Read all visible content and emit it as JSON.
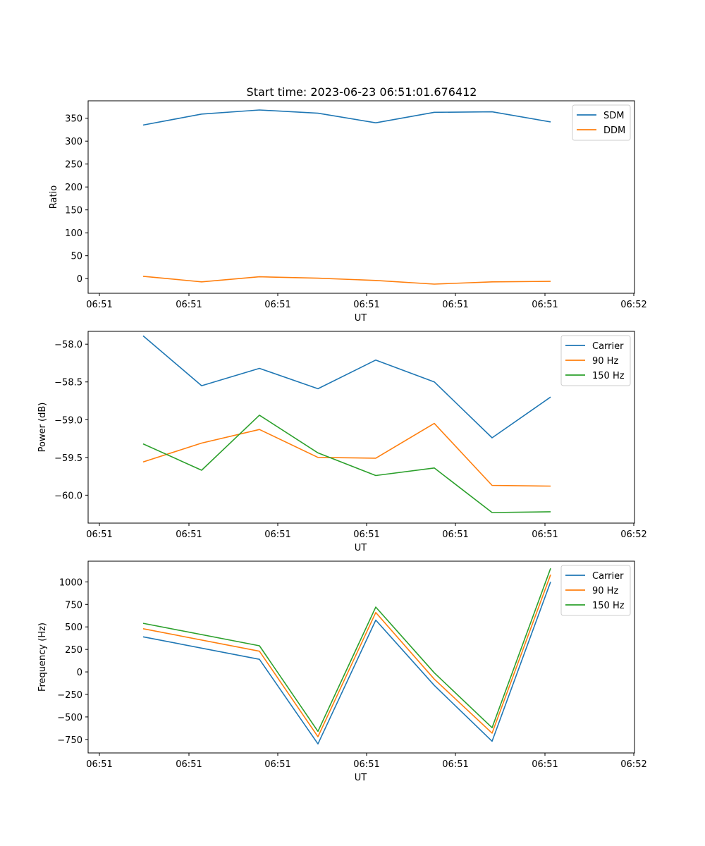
{
  "figure_title": "Start time: 2023-06-23 06:51:01.676412",
  "chart_data": [
    {
      "type": "line",
      "title": "Start time: 2023-06-23 06:51:01.676412",
      "xlabel": "UT",
      "ylabel": "Ratio",
      "x_ticks": [
        "06:51",
        "06:51",
        "06:51",
        "06:51",
        "06:51",
        "06:51",
        "06:52"
      ],
      "y_ticks": [
        "0",
        "50",
        "100",
        "150",
        "200",
        "250",
        "300",
        "350"
      ],
      "ylim": [
        -32,
        388
      ],
      "legend_position": "upper right",
      "x": [
        1,
        2,
        3,
        4,
        5,
        6,
        7,
        8
      ],
      "series": [
        {
          "name": "SDM",
          "color": "#1f77b4",
          "values": [
            335,
            359,
            368,
            361,
            340,
            363,
            364,
            342
          ]
        },
        {
          "name": "DDM",
          "color": "#ff7f0e",
          "values": [
            5,
            -7,
            4,
            1,
            -4,
            -12,
            -7,
            -6
          ]
        }
      ]
    },
    {
      "type": "line",
      "title": "",
      "xlabel": "UT",
      "ylabel": "Power (dB)",
      "x_ticks": [
        "06:51",
        "06:51",
        "06:51",
        "06:51",
        "06:51",
        "06:51",
        "06:52"
      ],
      "y_ticks": [
        "−60.0",
        "−59.5",
        "−59.0",
        "−58.5",
        "−58.0"
      ],
      "ylim": [
        -60.37,
        -57.83
      ],
      "legend_position": "upper right",
      "x": [
        1,
        2,
        3,
        4,
        5,
        6,
        7,
        8
      ],
      "series": [
        {
          "name": "Carrier",
          "color": "#1f77b4",
          "values": [
            -57.89,
            -58.55,
            -58.32,
            -58.59,
            -58.21,
            -58.5,
            -59.24,
            -58.7
          ]
        },
        {
          "name": "90 Hz",
          "color": "#ff7f0e",
          "values": [
            -59.56,
            -59.31,
            -59.13,
            -59.5,
            -59.51,
            -59.05,
            -59.87,
            -59.88
          ]
        },
        {
          "name": "150 Hz",
          "color": "#2ca02c",
          "values": [
            -59.32,
            -59.67,
            -58.94,
            -59.44,
            -59.74,
            -59.64,
            -60.23,
            -60.22
          ]
        }
      ]
    },
    {
      "type": "line",
      "title": "",
      "xlabel": "UT",
      "ylabel": "Frequency (Hz)",
      "x_ticks": [
        "06:51",
        "06:51",
        "06:51",
        "06:51",
        "06:51",
        "06:51",
        "06:52"
      ],
      "y_ticks": [
        "−750",
        "−500",
        "−250",
        "0",
        "250",
        "500",
        "750",
        "1000"
      ],
      "ylim": [
        -900,
        1230
      ],
      "legend_position": "upper right",
      "x": [
        1,
        3,
        4,
        5,
        6,
        7,
        8
      ],
      "series": [
        {
          "name": "Carrier",
          "color": "#1f77b4",
          "values": [
            390,
            140,
            -800,
            575,
            -150,
            -770,
            1000
          ]
        },
        {
          "name": "90 Hz",
          "color": "#ff7f0e",
          "values": [
            480,
            230,
            -720,
            660,
            -80,
            -680,
            1080
          ]
        },
        {
          "name": "150 Hz",
          "color": "#2ca02c",
          "values": [
            540,
            290,
            -660,
            720,
            -10,
            -620,
            1150
          ]
        }
      ]
    }
  ]
}
